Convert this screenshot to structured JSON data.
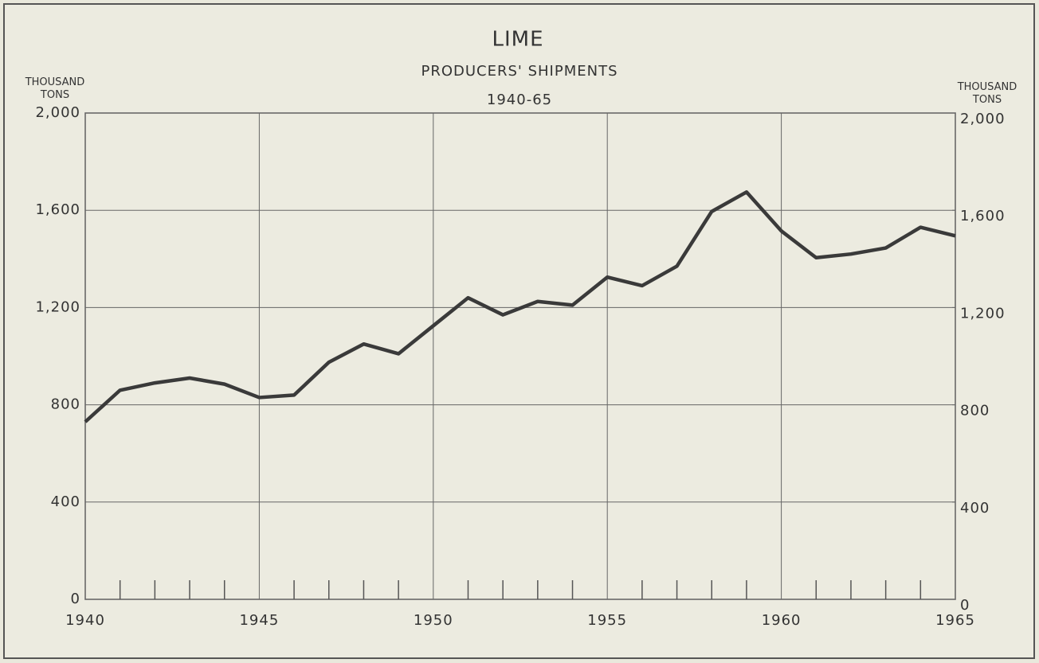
{
  "chart_data": {
    "type": "line",
    "title": "LIME",
    "subtitle": "PRODUCERS' SHIPMENTS",
    "subtitle2": "1940-65",
    "ylabel": "THOUSAND TONS",
    "y2label": "THOUSAND TONS",
    "x": [
      1940,
      1941,
      1942,
      1943,
      1944,
      1945,
      1946,
      1947,
      1948,
      1949,
      1950,
      1951,
      1952,
      1953,
      1954,
      1955,
      1956,
      1957,
      1958,
      1959,
      1960,
      1961,
      1962,
      1963,
      1964,
      1965
    ],
    "series": [
      {
        "name": "Lime",
        "color": "#3a3a3a",
        "values": [
          730,
          860,
          890,
          910,
          885,
          830,
          840,
          975,
          1050,
          1010,
          1125,
          1240,
          1170,
          1225,
          1210,
          1325,
          1290,
          1370,
          1595,
          1675,
          1515,
          1405,
          1420,
          1445,
          1530,
          1495
        ]
      }
    ],
    "xlim": [
      1940,
      1965
    ],
    "xticks": [
      1940,
      1945,
      1950,
      1955,
      1960,
      1965
    ],
    "xminorticks": [
      1941,
      1942,
      1943,
      1944,
      1946,
      1947,
      1948,
      1949,
      1951,
      1952,
      1953,
      1954,
      1956,
      1957,
      1958,
      1959,
      1961,
      1962,
      1963,
      1964
    ],
    "ylim": [
      0,
      2000
    ],
    "yticks": [
      0,
      400,
      800,
      {
        "value": 1200,
        "label": "1,200"
      },
      {
        "value": 1600,
        "label": "1,600"
      },
      {
        "value": 2000,
        "label": "2,000"
      }
    ],
    "y2lim": [
      0,
      2000
    ],
    "y2ticks": [
      0,
      400,
      800,
      {
        "value": 1200,
        "label": "1,200"
      },
      {
        "value": 1600,
        "label": "1,600"
      },
      {
        "value": 2000,
        "label": "2,000"
      }
    ],
    "grid": true,
    "legend": false
  }
}
